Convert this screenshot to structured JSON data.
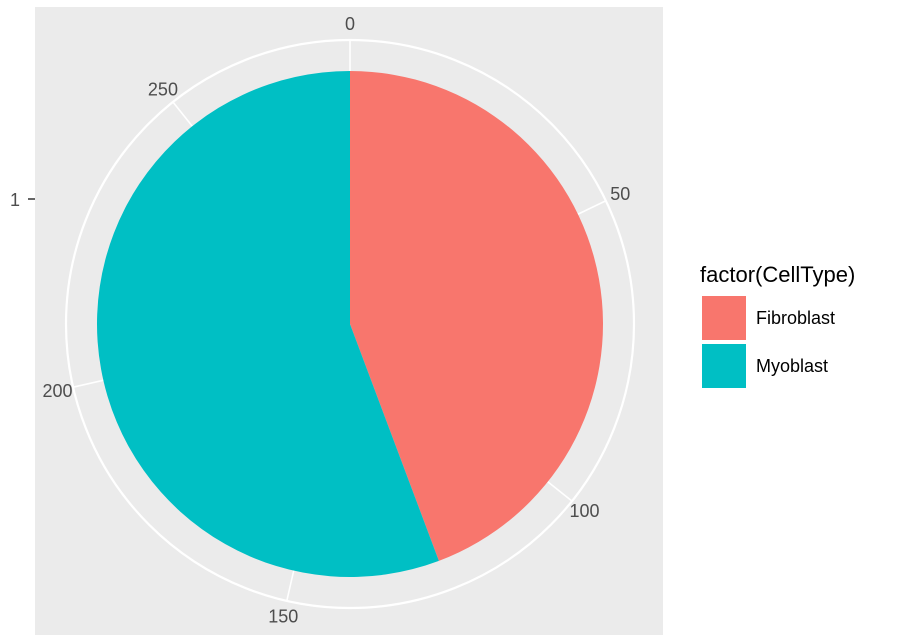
{
  "chart_data": {
    "type": "pie",
    "coord": "polar",
    "total": 280,
    "categories": [
      "Fibroblast",
      "Myoblast"
    ],
    "values": [
      124,
      156
    ],
    "colors": [
      "#f8766d",
      "#00bfc4"
    ],
    "theta_breaks": [
      0,
      50,
      100,
      150,
      200,
      250
    ],
    "theta_labels": [
      "0",
      "50",
      "100",
      "150",
      "200",
      "250"
    ],
    "radial_tick_label": "1",
    "legend": {
      "title": "factor(CellType)",
      "position": "right",
      "entries": [
        "Fibroblast",
        "Myoblast"
      ]
    },
    "panel_background": "#ebebeb",
    "grid": true,
    "grid_color": "#ffffff"
  }
}
